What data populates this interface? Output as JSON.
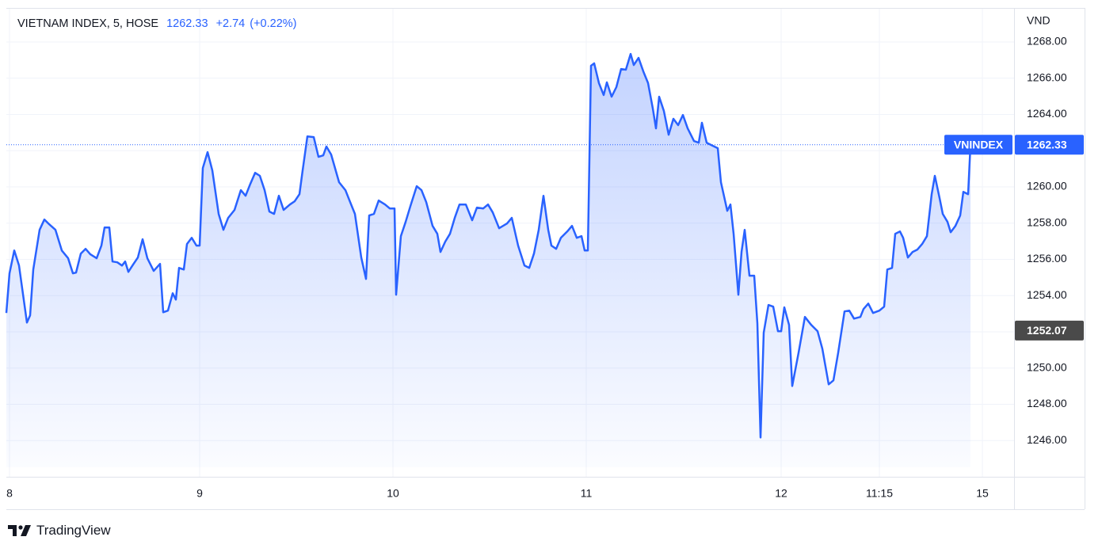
{
  "chart_data": {
    "type": "line",
    "header": {
      "symbol": "VIETNAM INDEX, 5, HOSE",
      "last": 1262.33,
      "change": {
        "value": 2.74,
        "label": "+2.74"
      },
      "change_pct": {
        "value": 0.22,
        "label": "(+0.22%)"
      }
    },
    "y_axis_label": "VND",
    "price_marker": 1252.07,
    "brand": "TradingView",
    "xlim": [
      0,
      1272
    ],
    "xticks": [
      {
        "value": 4,
        "label": "8"
      },
      {
        "value": 244,
        "label": "9"
      },
      {
        "value": 488,
        "label": "10"
      },
      {
        "value": 732,
        "label": "11"
      },
      {
        "value": 978,
        "label": "12"
      },
      {
        "value": 1102,
        "label": "11:15"
      },
      {
        "value": 1232,
        "label": "15"
      }
    ],
    "ylim": [
      1244,
      1269.88
    ],
    "yticks": [
      {
        "value": 1246,
        "label": "1246.00"
      },
      {
        "value": 1248,
        "label": "1248.00"
      },
      {
        "value": 1250,
        "label": "1250.00"
      },
      {
        "value": 1252,
        "label": "1252.00"
      },
      {
        "value": 1254,
        "label": "1254.00"
      },
      {
        "value": 1256,
        "label": "1256.00"
      },
      {
        "value": 1258,
        "label": "1258.00"
      },
      {
        "value": 1260,
        "label": "1260.00"
      },
      {
        "value": 1262,
        "label": "1262.00"
      },
      {
        "value": 1264,
        "label": "1264.00"
      },
      {
        "value": 1266,
        "label": "1266.00"
      },
      {
        "value": 1268,
        "label": "1268.00"
      }
    ],
    "grid": true,
    "series": [
      {
        "name": "VNINDEX",
        "color": "#2962ff",
        "x": [
          0,
          4,
          10,
          16,
          26,
          30,
          34,
          42,
          48,
          54,
          62,
          70,
          78,
          84,
          88,
          94,
          100,
          106,
          114,
          120,
          124,
          130,
          134,
          140,
          146,
          150,
          154,
          160,
          166,
          172,
          178,
          186,
          194,
          198,
          204,
          210,
          214,
          218,
          224,
          228,
          234,
          240,
          244,
          248,
          254,
          260,
          268,
          274,
          280,
          288,
          296,
          302,
          308,
          314,
          320,
          326,
          332,
          338,
          344,
          350,
          358,
          364,
          370,
          374,
          380,
          388,
          394,
          400,
          404,
          410,
          420,
          428,
          434,
          440,
          448,
          454,
          458,
          464,
          470,
          478,
          484,
          490,
          492,
          498,
          504,
          510,
          518,
          524,
          530,
          538,
          544,
          548,
          554,
          560,
          566,
          572,
          580,
          588,
          594,
          602,
          608,
          614,
          622,
          632,
          638,
          646,
          654,
          660,
          666,
          672,
          678,
          684,
          688,
          694,
          700,
          708,
          714,
          720,
          726,
          730,
          734,
          738,
          742,
          748,
          754,
          758,
          764,
          770,
          776,
          782,
          788,
          792,
          798,
          804,
          810,
          816,
          820,
          824,
          830,
          836,
          842,
          848,
          854,
          860,
          868,
          874,
          878,
          884,
          890,
          898,
          902,
          910,
          914,
          918,
          924,
          928,
          932,
          938,
          944,
          948,
          952,
          956,
          962,
          968,
          974,
          978,
          982,
          988,
          992,
          1000,
          1008,
          1016,
          1024,
          1030,
          1038,
          1044,
          1050,
          1058,
          1064,
          1070,
          1078,
          1082,
          1088,
          1094,
          1102,
          1108,
          1112,
          1118,
          1122,
          1128,
          1132,
          1138,
          1144,
          1150,
          1156,
          1162,
          1168,
          1172,
          1178,
          1182,
          1188,
          1192,
          1198,
          1204,
          1208,
          1214,
          1217
        ],
        "values": [
          1253.04,
          1255.23,
          1256.49,
          1255.66,
          1252.51,
          1252.91,
          1255.44,
          1257.63,
          1258.2,
          1257.94,
          1257.63,
          1256.49,
          1256.06,
          1255.23,
          1255.27,
          1256.32,
          1256.58,
          1256.28,
          1256.06,
          1256.76,
          1257.76,
          1257.76,
          1255.88,
          1255.84,
          1255.66,
          1255.88,
          1255.31,
          1255.71,
          1256.1,
          1257.11,
          1256.06,
          1255.36,
          1255.75,
          1253.08,
          1253.17,
          1254.13,
          1253.78,
          1255.53,
          1255.44,
          1256.85,
          1257.19,
          1256.76,
          1256.76,
          1261.04,
          1261.92,
          1260.91,
          1258.51,
          1257.63,
          1258.29,
          1258.73,
          1259.82,
          1259.51,
          1260.17,
          1260.78,
          1260.61,
          1259.82,
          1258.64,
          1258.51,
          1259.51,
          1258.73,
          1259.03,
          1259.21,
          1259.6,
          1260.91,
          1262.79,
          1262.75,
          1261.66,
          1261.74,
          1262.23,
          1261.79,
          1260.26,
          1259.82,
          1259.16,
          1258.51,
          1256.1,
          1254.92,
          1258.42,
          1258.51,
          1259.25,
          1259.03,
          1258.81,
          1258.81,
          1254.05,
          1257.28,
          1258.07,
          1258.94,
          1260.04,
          1259.82,
          1259.16,
          1257.85,
          1257.41,
          1256.41,
          1256.98,
          1257.41,
          1258.29,
          1259.03,
          1259.03,
          1258.16,
          1258.86,
          1258.81,
          1259.03,
          1258.59,
          1257.72,
          1257.98,
          1258.29,
          1256.76,
          1255.66,
          1255.53,
          1256.32,
          1257.63,
          1259.51,
          1257.63,
          1256.76,
          1256.58,
          1257.19,
          1257.54,
          1257.85,
          1257.19,
          1257.28,
          1256.49,
          1256.49,
          1266.69,
          1266.82,
          1265.73,
          1265.07,
          1265.77,
          1264.98,
          1265.51,
          1266.51,
          1266.47,
          1267.34,
          1266.73,
          1267.12,
          1266.38,
          1265.73,
          1264.33,
          1263.23,
          1264.98,
          1264.19,
          1262.88,
          1263.76,
          1263.41,
          1263.97,
          1263.23,
          1262.53,
          1262.44,
          1263.54,
          1262.44,
          1262.31,
          1262.14,
          1260.26,
          1258.68,
          1259.03,
          1257.41,
          1254.05,
          1256.41,
          1257.63,
          1255.1,
          1255.1,
          1252.47,
          1246.17,
          1251.95,
          1253.48,
          1253.39,
          1252.03,
          1252.03,
          1253.35,
          1252.38,
          1249.01,
          1250.85,
          1252.82,
          1252.38,
          1252.03,
          1251.07,
          1249.1,
          1249.32,
          1250.85,
          1253.13,
          1253.17,
          1252.73,
          1252.82,
          1253.26,
          1253.56,
          1253.04,
          1253.17,
          1253.39,
          1255.44,
          1255.53,
          1257.41,
          1257.54,
          1257.19,
          1256.1,
          1256.41,
          1256.54,
          1256.85,
          1257.28,
          1259.6,
          1260.61,
          1259.38,
          1258.51,
          1258.07,
          1257.5,
          1257.85,
          1258.42,
          1259.73,
          1259.6,
          1262.33
        ]
      }
    ]
  }
}
